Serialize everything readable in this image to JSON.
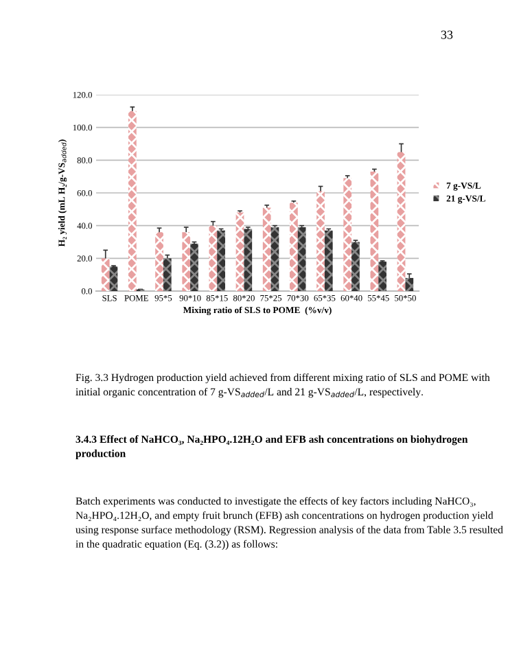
{
  "chart_data": {
    "type": "bar",
    "xlabel": "Mixing ratio of SLS to POME  (%v/v)",
    "ylabel": "H₂ yield (mL H₂/g-VS$_{added}$)",
    "categories": [
      "SLS",
      "POME",
      "95*5",
      "90*10",
      "85*15",
      "80*20",
      "75*25",
      "70*30",
      "65*35",
      "60*40",
      "55*45",
      "50*50"
    ],
    "series": [
      {
        "name": "7 g-VS/L",
        "color": "#e8a0a0",
        "values": [
          20,
          110,
          36,
          36,
          40,
          48,
          51,
          54,
          61,
          69,
          73,
          85
        ],
        "errors": [
          5,
          2.5,
          2.5,
          3,
          2.5,
          1,
          1.5,
          1,
          3,
          1.5,
          1.5,
          5
        ]
      },
      {
        "name": "21 g-VS/L",
        "color": "#333333",
        "values": [
          15,
          1,
          20,
          29,
          37,
          38,
          39,
          39,
          37,
          30,
          18,
          8
        ],
        "errors": [
          0.5,
          null,
          2,
          1,
          1,
          1,
          1,
          1,
          1,
          1,
          0.5,
          2.5
        ]
      }
    ],
    "ylim": [
      0,
      120
    ],
    "yticks": [
      {
        "value": 0,
        "label": "0.0"
      },
      {
        "value": 20,
        "label": "20.0"
      },
      {
        "value": 40,
        "label": "40.0"
      },
      {
        "value": 60,
        "label": "60.0"
      },
      {
        "value": 80,
        "label": "80.0"
      },
      {
        "value": 100,
        "label": "100.0"
      },
      {
        "value": 120,
        "label": "120.0"
      }
    ],
    "grid": "y",
    "legend": "right",
    "annotations": [
      "33",
      "Fig. 3.3 Hydrogen production yield achieved from different mixing ratio of SLS and POME with initial organic concentration of 7 g-VS$_{added}$/L and 21 g-VS$_{added}$/L, respectively.",
      "3.4.3 Effect of NaHCO₃, Na₂HPO₄.12H₂O and EFB ash concentrations on biohydrogen production",
      "Batch experiments was conducted to investigate the effects of key factors including NaHCO₃, Na₂HPO₄.12H₂O, and empty fruit brunch (EFB) ash concentrations on hydrogen production yield using response surface methodology (RSM). Regression analysis of the data from Table 3.5 resulted in the quadratic equation (Eq. (3.2)) as follows:"
    ]
  }
}
